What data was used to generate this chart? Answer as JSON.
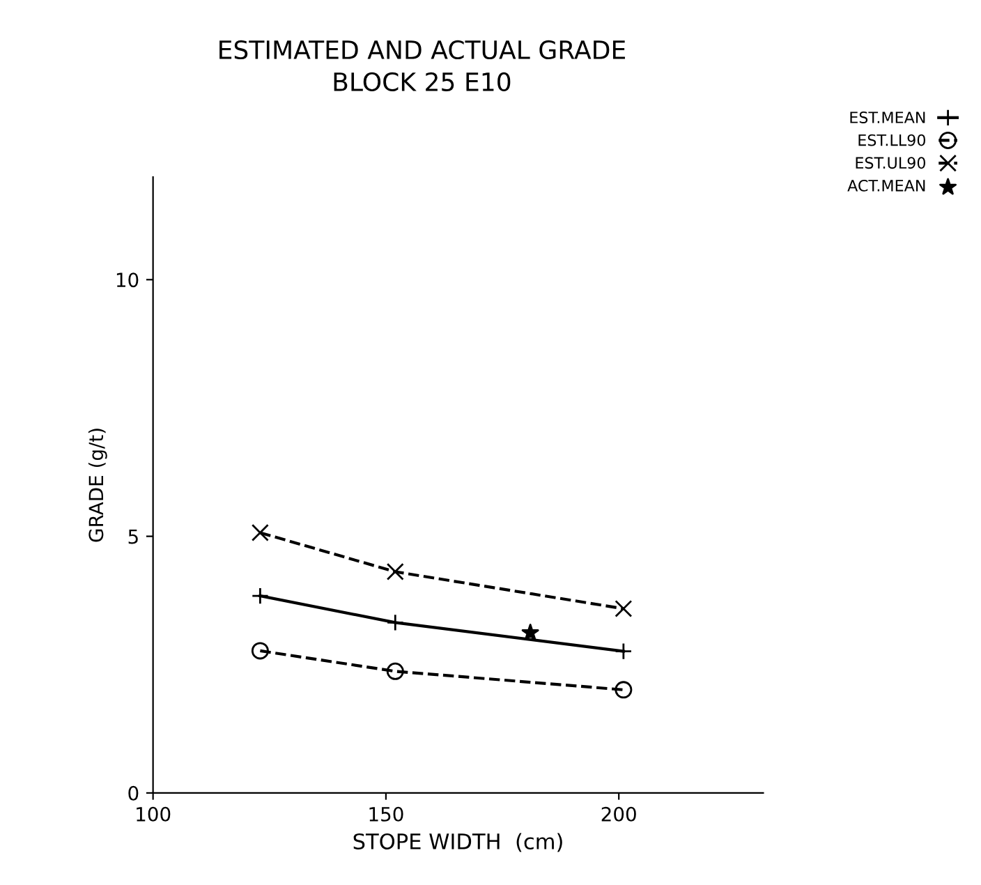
{
  "chart_data": {
    "type": "line",
    "title": "ESTIMATED AND ACTUAL GRADE\nBLOCK 25 E10",
    "xlabel": "STOPE WIDTH  (cm)",
    "ylabel": "GRADE (g/t)",
    "xlim": [
      100,
      231
    ],
    "xticks": [
      100,
      150,
      200
    ],
    "ylim": [
      0,
      12
    ],
    "yticks": [
      0,
      5,
      10
    ],
    "grid": false,
    "legend": "top right",
    "series": [
      {
        "name": "EST.MEAN",
        "color": "#000000",
        "x": [
          123,
          152,
          201
        ],
        "values": [
          3.84,
          3.32,
          2.76
        ],
        "marker": "plus",
        "line_style": "solid"
      },
      {
        "name": "EST.LL90",
        "color": "#000000",
        "x": [
          123,
          152,
          201
        ],
        "values": [
          2.77,
          2.37,
          2.01
        ],
        "marker": "circle",
        "line_style": "dashed"
      },
      {
        "name": "EST.UL90",
        "color": "#000000",
        "x": [
          123,
          152,
          201
        ],
        "values": [
          5.07,
          4.31,
          3.59
        ],
        "marker": "cross",
        "line_style": "dashed"
      },
      {
        "name": "ACT.MEAN",
        "color": "#000000",
        "type": "scatter",
        "x": [
          181
        ],
        "values": [
          3.12
        ],
        "marker": "star"
      }
    ]
  }
}
